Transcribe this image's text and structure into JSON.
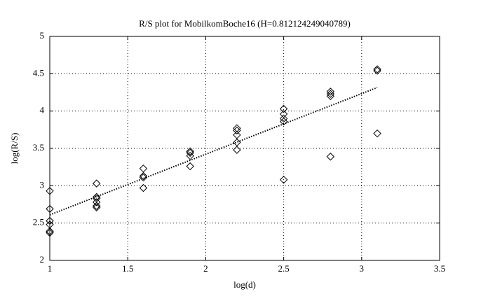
{
  "chart_data": {
    "type": "scatter",
    "title": "R/S plot for MobilkomBoche16 (H=0.812124249040789)",
    "xlabel": "log(d)",
    "ylabel": "log(R/S)",
    "x": [
      1,
      1,
      1,
      1,
      1,
      1,
      1.3,
      1.3,
      1.3,
      1.3,
      1.3,
      1.3,
      1.6,
      1.6,
      1.6,
      1.6,
      1.9,
      1.9,
      1.9,
      1.9,
      2.2,
      2.2,
      2.2,
      2.2,
      2.2,
      2.5,
      2.5,
      2.5,
      2.5,
      2.5,
      2.8,
      2.8,
      2.8,
      2.8,
      3.1,
      3.1,
      3.1
    ],
    "values": [
      2.93,
      2.69,
      2.53,
      2.48,
      2.39,
      2.37,
      3.03,
      2.85,
      2.83,
      2.78,
      2.73,
      2.71,
      3.23,
      3.13,
      3.11,
      2.97,
      3.46,
      3.44,
      3.4,
      3.26,
      3.77,
      3.74,
      3.68,
      3.58,
      3.48,
      4.03,
      3.96,
      3.9,
      3.86,
      3.08,
      4.26,
      4.23,
      4.2,
      3.39,
      4.56,
      4.54,
      3.7
    ],
    "color": "#000000",
    "fit": {
      "x": [
        1,
        3.1
      ],
      "values": [
        2.61,
        4.315
      ]
    },
    "xlim": [
      1,
      3.5
    ],
    "xticks": [
      1,
      1.5,
      2,
      2.5,
      3,
      3.5
    ],
    "ylim": [
      2,
      5
    ],
    "yticks": [
      2,
      2.5,
      3,
      3.5,
      4,
      4.5,
      5
    ],
    "grid": true
  }
}
